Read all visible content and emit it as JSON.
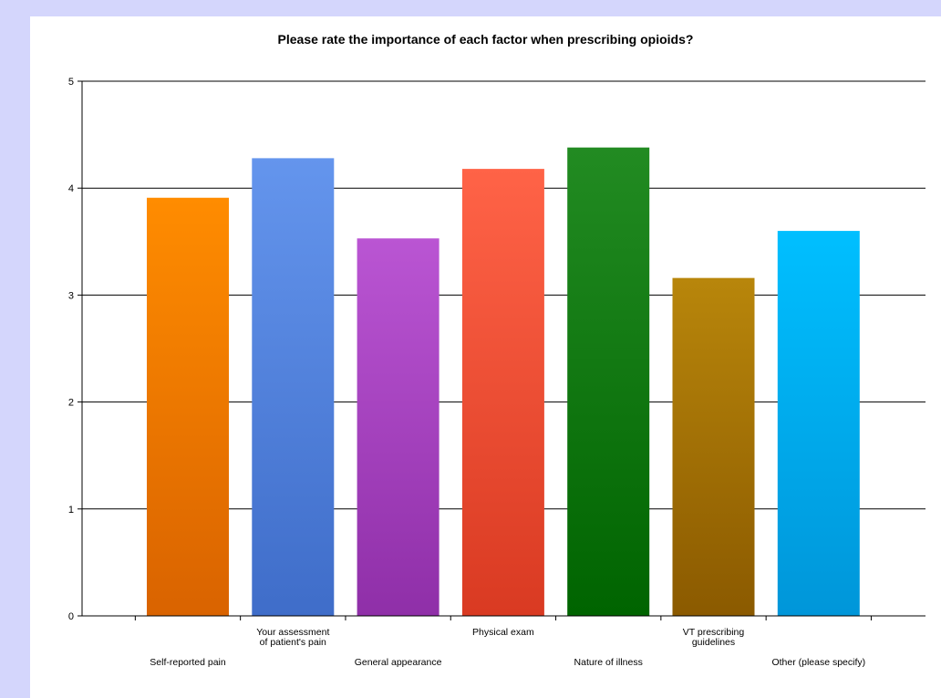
{
  "chart_data": {
    "type": "bar",
    "title": "Please rate the importance of each factor when prescribing opioids?",
    "xlabel": "",
    "ylabel": "",
    "ylim": [
      0,
      5
    ],
    "yticks": [
      0,
      1,
      2,
      3,
      4,
      5
    ],
    "grid": true,
    "legend": "none",
    "categories": [
      {
        "label": [
          "Self-reported pain"
        ],
        "row": "lower"
      },
      {
        "label": [
          "Your assessment",
          "of patient's pain"
        ],
        "row": "upper"
      },
      {
        "label": [
          "General appearance"
        ],
        "row": "lower"
      },
      {
        "label": [
          "Physical exam"
        ],
        "row": "upper"
      },
      {
        "label": [
          "Nature of illness"
        ],
        "row": "lower"
      },
      {
        "label": [
          "VT prescribing",
          "guidelines"
        ],
        "row": "upper"
      },
      {
        "label": [
          "Other (please specify)"
        ],
        "row": "lower"
      }
    ],
    "series": [
      {
        "values": [
          3.91,
          4.28,
          3.53,
          4.18,
          4.38,
          3.16,
          3.6
        ]
      }
    ],
    "colors": [
      [
        "#ff8c00",
        "#d96300"
      ],
      [
        "#6495ed",
        "#3f6dc9"
      ],
      [
        "#ba55d3",
        "#8f2fa8"
      ],
      [
        "#ff6347",
        "#d93a22"
      ],
      [
        "#228b22",
        "#006400"
      ],
      [
        "#b8860b",
        "#8b5a00"
      ],
      [
        "#00bfff",
        "#0096d9"
      ]
    ]
  }
}
